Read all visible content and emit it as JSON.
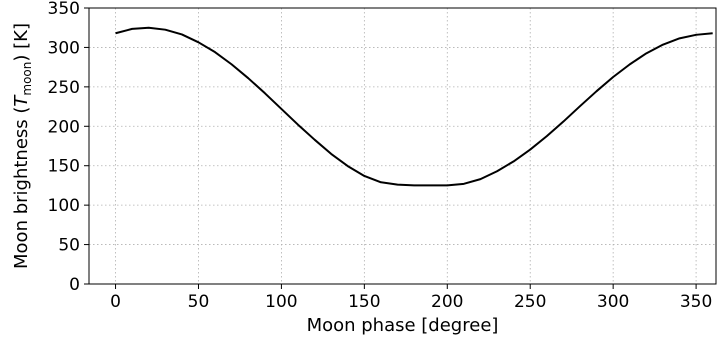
{
  "chart_data": {
    "type": "line",
    "xlabel": "Moon phase [degree]",
    "ylabel": {
      "prefix": "Moon brightness (",
      "symbol": "T",
      "subscript": "moon",
      "suffix": ") [K]"
    },
    "xlim": [
      -16,
      362
    ],
    "ylim": [
      0,
      350
    ],
    "xticks": [
      0,
      50,
      100,
      150,
      200,
      250,
      300,
      350
    ],
    "yticks": [
      0,
      50,
      100,
      150,
      200,
      250,
      300,
      350
    ],
    "grid": true,
    "series": [
      {
        "color": "#000000",
        "x": [
          0,
          10,
          20,
          30,
          40,
          50,
          60,
          70,
          80,
          90,
          100,
          110,
          120,
          130,
          140,
          150,
          160,
          170,
          180,
          190,
          200,
          210,
          220,
          230,
          240,
          250,
          260,
          270,
          280,
          290,
          300,
          310,
          320,
          330,
          340,
          350,
          360
        ],
        "y": [
          318,
          323.5,
          325,
          322.5,
          316.5,
          306.5,
          294,
          278.5,
          261,
          242,
          222,
          202,
          183,
          165,
          149.5,
          137,
          129,
          126,
          125,
          125,
          125,
          127,
          133,
          143,
          155.5,
          170.5,
          187.5,
          206,
          225.5,
          244.5,
          262.5,
          278.5,
          292.5,
          303.5,
          311.5,
          316,
          318
        ]
      }
    ]
  }
}
